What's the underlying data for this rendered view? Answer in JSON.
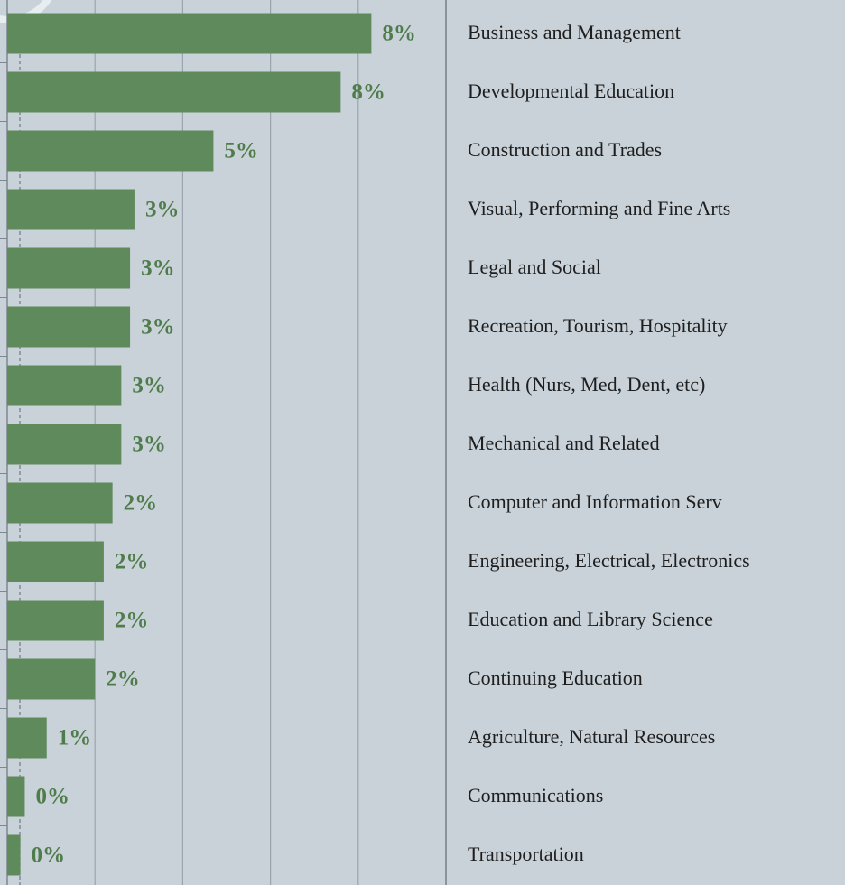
{
  "chart_data": {
    "type": "bar",
    "orientation": "horizontal",
    "categories": [
      "Business and Management",
      "Developmental Education",
      "Construction and Trades",
      "Visual,  Performing and Fine Arts",
      "Legal and Social",
      "Recreation, Tourism, Hospitality",
      "Health (Nurs, Med, Dent, etc)",
      "Mechanical and Related",
      "Computer and Information Serv",
      "Engineering, Electrical, Electronics",
      "Education and Library Science",
      "Continuing Education",
      "Agriculture, Natural Resources",
      "Communications",
      "Transportation"
    ],
    "values": [
      8.3,
      7.6,
      4.7,
      2.9,
      2.8,
      2.8,
      2.6,
      2.6,
      2.4,
      2.2,
      2.2,
      2.0,
      0.9,
      0.4,
      0.3
    ],
    "value_labels": [
      "8%",
      "8%",
      "5%",
      "3%",
      "3%",
      "3%",
      "3%",
      "3%",
      "2%",
      "2%",
      "2%",
      "2%",
      "1%",
      "0%",
      "0%"
    ],
    "color": "#5f8a5c",
    "xlim": [
      0,
      10
    ],
    "xticks": [
      2,
      4,
      6,
      8,
      10
    ],
    "grid": true
  }
}
